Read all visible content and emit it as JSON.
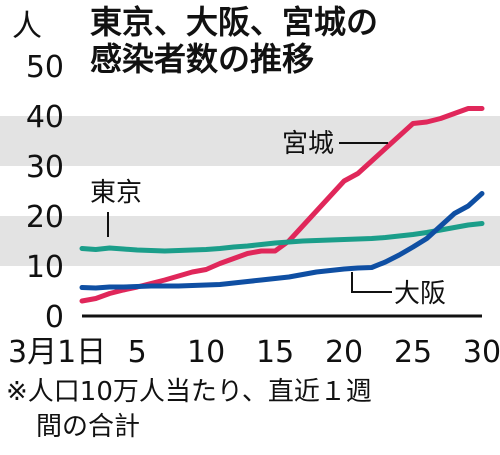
{
  "chart_data": {
    "type": "line",
    "title": "東京、大阪、宮城の\n感染者数の推移",
    "ylabel": "人",
    "ylim": [
      0,
      50
    ],
    "yticks": [
      0,
      10,
      20,
      30,
      40,
      50
    ],
    "xlim": [
      1,
      30
    ],
    "xticks": [
      1,
      5,
      10,
      15,
      20,
      25,
      30
    ],
    "xtick_labels": [
      "3月1日",
      "5",
      "10",
      "15",
      "20",
      "25",
      "30"
    ],
    "grid": "alternating gray bands",
    "footnote": "※人口10万人当たり、直近１週\n間の合計",
    "series": [
      {
        "name": "宮城",
        "color": "#e0275a",
        "x": [
          1,
          2,
          3,
          4,
          5,
          6,
          7,
          8,
          9,
          10,
          11,
          12,
          13,
          14,
          15,
          16,
          17,
          18,
          19,
          20,
          21,
          22,
          23,
          24,
          25,
          26,
          27,
          28,
          29,
          30
        ],
        "values": [
          3,
          3.5,
          4.5,
          5.2,
          5.8,
          6.5,
          7.2,
          8,
          8.8,
          9.3,
          10.5,
          11.5,
          12.5,
          13,
          13,
          15,
          18,
          21,
          24,
          27,
          28.5,
          31,
          33.5,
          36,
          38.5,
          38.8,
          39.5,
          40.5,
          41.5,
          41.5
        ]
      },
      {
        "name": "東京",
        "color": "#1b9e8a",
        "x": [
          1,
          2,
          3,
          4,
          5,
          6,
          7,
          8,
          9,
          10,
          11,
          12,
          13,
          14,
          15,
          16,
          17,
          18,
          19,
          20,
          21,
          22,
          23,
          24,
          25,
          26,
          27,
          28,
          29,
          30
        ],
        "values": [
          13.5,
          13.3,
          13.6,
          13.4,
          13.2,
          13.1,
          13,
          13.1,
          13.2,
          13.3,
          13.5,
          13.8,
          14,
          14.3,
          14.6,
          14.8,
          15,
          15.1,
          15.2,
          15.3,
          15.4,
          15.5,
          15.7,
          16,
          16.3,
          16.7,
          17.2,
          17.7,
          18.2,
          18.5
        ]
      },
      {
        "name": "大阪",
        "color": "#0f4fa3",
        "x": [
          1,
          2,
          3,
          4,
          5,
          6,
          7,
          8,
          9,
          10,
          11,
          12,
          13,
          14,
          15,
          16,
          17,
          18,
          19,
          20,
          21,
          22,
          23,
          24,
          25,
          26,
          27,
          28,
          29,
          30
        ],
        "values": [
          5.7,
          5.6,
          5.8,
          5.8,
          5.9,
          6,
          6,
          6,
          6.1,
          6.2,
          6.3,
          6.6,
          6.9,
          7.2,
          7.5,
          7.8,
          8.3,
          8.8,
          9.1,
          9.4,
          9.6,
          9.7,
          10.8,
          12.2,
          13.8,
          15.5,
          18,
          20.5,
          22,
          24.5
        ]
      }
    ],
    "annotations": [
      {
        "text": "宮城"
      },
      {
        "text": "東京"
      },
      {
        "text": "大阪"
      }
    ]
  }
}
